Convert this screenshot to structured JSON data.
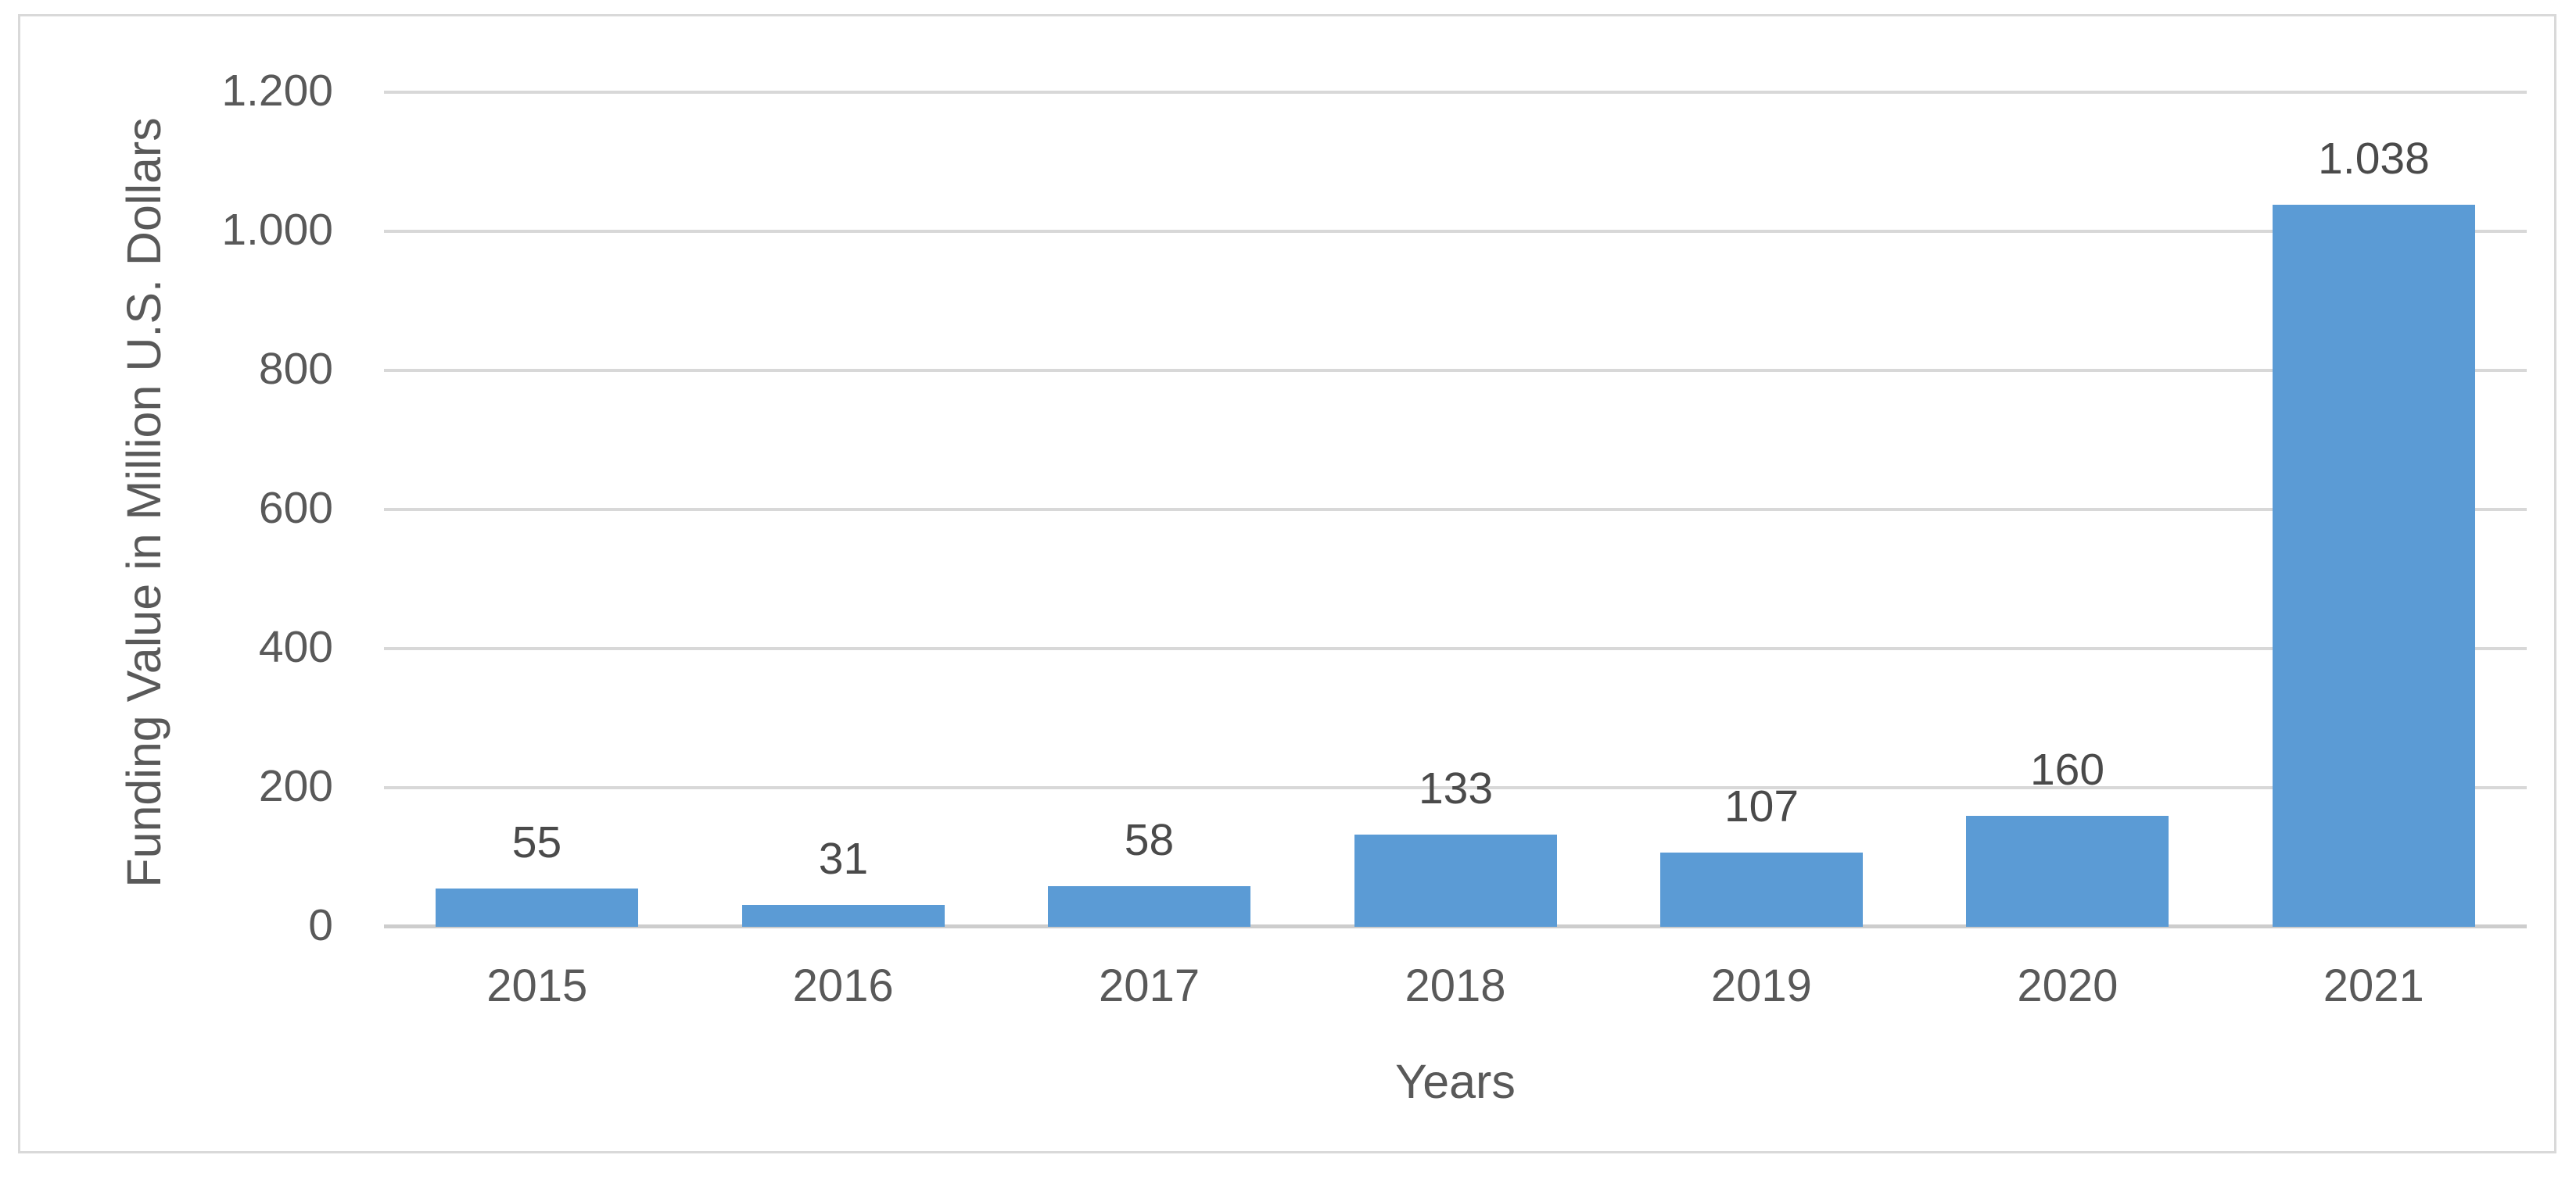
{
  "chart_data": {
    "type": "bar",
    "title": "",
    "categories": [
      "2015",
      "2016",
      "2017",
      "2018",
      "2019",
      "2020",
      "2021"
    ],
    "values": [
      55,
      31,
      58,
      133,
      107,
      160,
      1038
    ],
    "value_labels": [
      "55",
      "31",
      "58",
      "133",
      "107",
      "160",
      "1.038"
    ],
    "xlabel": "Years",
    "ylabel": "Funding Value in Million U.S. Dollars",
    "ylim": [
      0,
      1200
    ],
    "yticks": [
      0,
      200,
      400,
      600,
      800,
      1000,
      1200
    ],
    "ytick_labels": [
      "0",
      "200",
      "400",
      "600",
      "800",
      "1.000",
      "1.200"
    ],
    "grid": "horizontal",
    "legend": "none",
    "colors": {
      "bar": "#5B9BD5",
      "gridline": "#D8D8D8",
      "axis_line": "#CDCDCD",
      "tick_text": "#595959",
      "data_label_text": "#4A4A4A",
      "frame_border": "#D9D9D9",
      "background": "#FFFFFF"
    }
  }
}
